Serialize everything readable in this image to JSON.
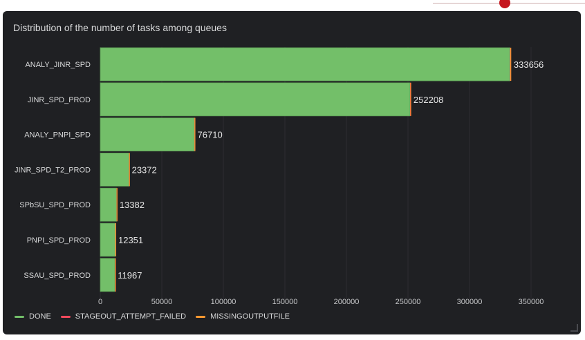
{
  "panel": {
    "title": "Distribution of the number of tasks among queues"
  },
  "chart_data": {
    "type": "bar",
    "orientation": "horizontal",
    "stacked": true,
    "title": "Distribution of the number of tasks among queues",
    "categories": [
      "ANALY_JINR_SPD",
      "JINR_SPD_PROD",
      "ANALY_PNPI_SPD",
      "JINR_SPD_T2_PROD",
      "SPbSU_SPD_PROD",
      "PNPI_SPD_PROD",
      "SSAU_SPD_PROD"
    ],
    "totals": [
      333656,
      252208,
      76710,
      23372,
      13382,
      12351,
      11967
    ],
    "series": [
      {
        "name": "DONE",
        "color": "#73bf69",
        "values": [
          332900,
          251700,
          76500,
          23300,
          13200,
          12200,
          11900
        ]
      },
      {
        "name": "STAGEOUT_ATTEMPT_FAILED",
        "color": "#f2495c",
        "values": [
          300,
          200,
          80,
          30,
          70,
          60,
          30
        ]
      },
      {
        "name": "MISSINGOUTPUTFILE",
        "color": "#ff9830",
        "values": [
          456,
          308,
          130,
          42,
          112,
          91,
          37
        ]
      }
    ],
    "xlim": [
      0,
      365000
    ],
    "xticks": [
      "0",
      "50000",
      "100000",
      "150000",
      "200000",
      "250000",
      "300000",
      "350000"
    ],
    "grid": true,
    "legend_position": "bottom"
  },
  "legend": {
    "items": [
      {
        "label": "DONE",
        "color": "#73bf69"
      },
      {
        "label": "STAGEOUT_ATTEMPT_FAILED",
        "color": "#f2495c"
      },
      {
        "label": "MISSINGOUTPUTFILE",
        "color": "#ff9830"
      }
    ]
  }
}
